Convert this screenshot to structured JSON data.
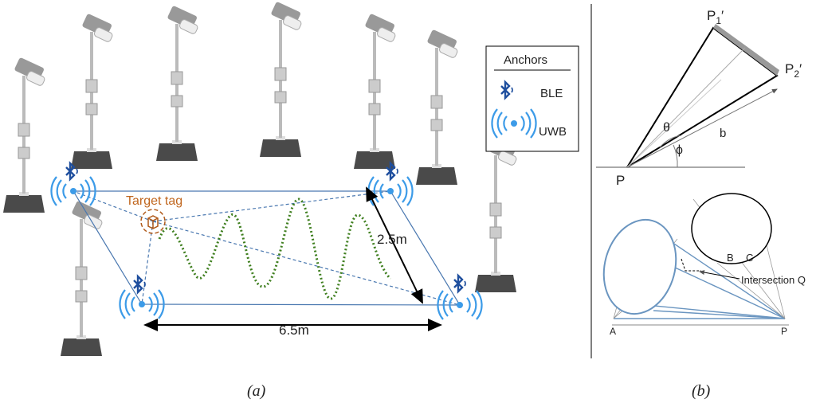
{
  "panel_a": {
    "legend": {
      "title": "Anchors",
      "items": [
        "BLE",
        "UWB"
      ]
    },
    "target_label": "Target tag",
    "width_label": "2.5m",
    "length_label": "6.5m",
    "caption": "(a)"
  },
  "panel_b": {
    "top": {
      "p1": {
        "base": "P",
        "sub": "1",
        "prime": "′"
      },
      "p2": {
        "base": "P",
        "sub": "2",
        "prime": "′"
      },
      "theta": "θ",
      "phi": "ϕ",
      "b": "b",
      "p": "P"
    },
    "bottom": {
      "b": "B",
      "c": "C",
      "intersection": "Intersection Q",
      "a": "A",
      "p": "P"
    },
    "caption": "(b)"
  }
}
